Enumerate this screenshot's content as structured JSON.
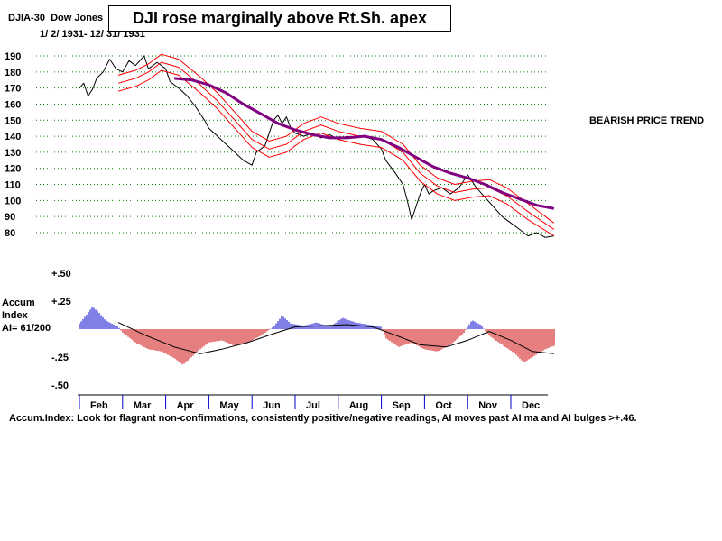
{
  "header": {
    "ticker": "DJIA-30",
    "index_name": "Dow Jones",
    "date_range": "1/ 2/ 1931- 12/ 31/ 1931",
    "headline": "DJI rose marginally above Rt.Sh. apex",
    "trend_label": "BEARISH PRICE TREND"
  },
  "accum": {
    "label_line1": "Accum",
    "label_line2": "Index",
    "label_line3": "AI= 61/200"
  },
  "footer": {
    "note": "Accum.Index: Look for flagrant non-confirmations, consistently positive/negative readings, AI moves past AI ma and AI bulges >+.46."
  },
  "chart_data": [
    {
      "type": "line",
      "title": "DJIA-30 1931",
      "ylabel": "",
      "ylim": [
        78,
        190
      ],
      "yticks": [
        80,
        90,
        100,
        110,
        120,
        130,
        140,
        150,
        160,
        170,
        180,
        190
      ],
      "months": [
        "Feb",
        "Mar",
        "Apr",
        "May",
        "Jun",
        "Jul",
        "Aug",
        "Sep",
        "Oct",
        "Nov",
        "Dec"
      ],
      "series": [
        {
          "name": "DJIA",
          "color": "#000000",
          "points": [
            [
              0.0,
              170
            ],
            [
              0.1,
              173
            ],
            [
              0.2,
              165
            ],
            [
              0.3,
              169
            ],
            [
              0.4,
              176
            ],
            [
              0.55,
              180
            ],
            [
              0.7,
              188
            ],
            [
              0.85,
              182
            ],
            [
              1.0,
              180
            ],
            [
              1.15,
              187
            ],
            [
              1.3,
              184
            ],
            [
              1.5,
              190
            ],
            [
              1.6,
              182
            ],
            [
              1.8,
              186
            ],
            [
              2.0,
              182
            ],
            [
              2.1,
              174
            ],
            [
              2.3,
              170
            ],
            [
              2.5,
              165
            ],
            [
              2.7,
              158
            ],
            [
              2.9,
              150
            ],
            [
              3.0,
              145
            ],
            [
              3.2,
              140
            ],
            [
              3.4,
              135
            ],
            [
              3.6,
              130
            ],
            [
              3.8,
              125
            ],
            [
              4.0,
              122
            ],
            [
              4.1,
              130
            ],
            [
              4.3,
              134
            ],
            [
              4.5,
              150
            ],
            [
              4.6,
              153
            ],
            [
              4.7,
              148
            ],
            [
              4.8,
              152
            ],
            [
              4.9,
              145
            ],
            [
              5.0,
              142
            ],
            [
              5.2,
              140
            ],
            [
              5.4,
              142
            ],
            [
              5.6,
              139
            ],
            [
              5.8,
              141
            ],
            [
              6.0,
              138
            ],
            [
              6.2,
              140
            ],
            [
              6.4,
              139
            ],
            [
              6.6,
              140
            ],
            [
              6.8,
              138
            ],
            [
              7.0,
              132
            ],
            [
              7.1,
              125
            ],
            [
              7.3,
              118
            ],
            [
              7.5,
              110
            ],
            [
              7.6,
              100
            ],
            [
              7.7,
              88
            ],
            [
              7.8,
              96
            ],
            [
              7.9,
              104
            ],
            [
              8.0,
              110
            ],
            [
              8.1,
              104
            ],
            [
              8.2,
              106
            ],
            [
              8.4,
              108
            ],
            [
              8.6,
              104
            ],
            [
              8.8,
              108
            ],
            [
              9.0,
              116
            ],
            [
              9.1,
              112
            ],
            [
              9.2,
              108
            ],
            [
              9.4,
              102
            ],
            [
              9.6,
              96
            ],
            [
              9.8,
              90
            ],
            [
              10.0,
              86
            ],
            [
              10.2,
              82
            ],
            [
              10.4,
              78
            ],
            [
              10.6,
              80
            ],
            [
              10.8,
              77
            ],
            [
              11.0,
              78
            ]
          ]
        },
        {
          "name": "MA upper band",
          "color": "#ff0000",
          "points": [
            [
              0.9,
              178
            ],
            [
              1.3,
              181
            ],
            [
              1.6,
              185
            ],
            [
              1.9,
              191
            ],
            [
              2.3,
              188
            ],
            [
              2.8,
              177
            ],
            [
              3.2,
              167
            ],
            [
              3.6,
              155
            ],
            [
              4.0,
              143
            ],
            [
              4.4,
              137
            ],
            [
              4.8,
              140
            ],
            [
              5.2,
              148
            ],
            [
              5.6,
              152
            ],
            [
              6.0,
              148
            ],
            [
              6.5,
              145
            ],
            [
              7.0,
              143
            ],
            [
              7.5,
              135
            ],
            [
              7.9,
              122
            ],
            [
              8.3,
              114
            ],
            [
              8.7,
              110
            ],
            [
              9.1,
              112
            ],
            [
              9.5,
              113
            ],
            [
              9.9,
              108
            ],
            [
              10.4,
              98
            ],
            [
              11.0,
              86
            ]
          ]
        },
        {
          "name": "MA",
          "color": "#ff0000",
          "points": [
            [
              0.9,
              173
            ],
            [
              1.3,
              176
            ],
            [
              1.6,
              180
            ],
            [
              1.9,
              186
            ],
            [
              2.3,
              183
            ],
            [
              2.8,
              172
            ],
            [
              3.2,
              162
            ],
            [
              3.6,
              150
            ],
            [
              4.0,
              138
            ],
            [
              4.4,
              132
            ],
            [
              4.8,
              135
            ],
            [
              5.2,
              143
            ],
            [
              5.6,
              147
            ],
            [
              6.0,
              143
            ],
            [
              6.5,
              140
            ],
            [
              7.0,
              138
            ],
            [
              7.5,
              130
            ],
            [
              7.9,
              117
            ],
            [
              8.3,
              109
            ],
            [
              8.7,
              105
            ],
            [
              9.1,
              107
            ],
            [
              9.5,
              108
            ],
            [
              9.9,
              103
            ],
            [
              10.4,
              93
            ],
            [
              11.0,
              82
            ]
          ]
        },
        {
          "name": "MA lower band",
          "color": "#ff0000",
          "points": [
            [
              0.9,
              168
            ],
            [
              1.3,
              171
            ],
            [
              1.6,
              175
            ],
            [
              1.9,
              181
            ],
            [
              2.3,
              178
            ],
            [
              2.8,
              167
            ],
            [
              3.2,
              157
            ],
            [
              3.6,
              145
            ],
            [
              4.0,
              133
            ],
            [
              4.4,
              127
            ],
            [
              4.8,
              130
            ],
            [
              5.2,
              138
            ],
            [
              5.6,
              142
            ],
            [
              6.0,
              138
            ],
            [
              6.5,
              135
            ],
            [
              7.0,
              133
            ],
            [
              7.5,
              125
            ],
            [
              7.9,
              112
            ],
            [
              8.3,
              104
            ],
            [
              8.7,
              100
            ],
            [
              9.1,
              102
            ],
            [
              9.5,
              103
            ],
            [
              9.9,
              98
            ],
            [
              10.4,
              88
            ],
            [
              11.0,
              78
            ]
          ]
        },
        {
          "name": "Long MA",
          "color": "#800080",
          "points": [
            [
              2.2,
              176
            ],
            [
              2.6,
              175
            ],
            [
              3.0,
              172
            ],
            [
              3.4,
              167
            ],
            [
              3.8,
              160
            ],
            [
              4.2,
              154
            ],
            [
              4.6,
              148
            ],
            [
              5.0,
              144
            ],
            [
              5.4,
              141
            ],
            [
              5.8,
              139
            ],
            [
              6.2,
              139
            ],
            [
              6.6,
              140
            ],
            [
              7.0,
              138
            ],
            [
              7.4,
              133
            ],
            [
              7.8,
              127
            ],
            [
              8.2,
              121
            ],
            [
              8.6,
              117
            ],
            [
              9.0,
              114
            ],
            [
              9.4,
              110
            ],
            [
              9.8,
              105
            ],
            [
              10.2,
              101
            ],
            [
              10.6,
              97
            ],
            [
              11.0,
              95
            ]
          ]
        }
      ]
    },
    {
      "type": "bar",
      "title": "Accumulation Index",
      "ylim": [
        -0.5,
        0.5
      ],
      "yticks": [
        0.5,
        0.25,
        -0.25,
        -0.5
      ],
      "ytick_labels": [
        "+.50",
        "+.25",
        "-.25",
        "-.50"
      ],
      "ai_points": [
        [
          0.0,
          0.05
        ],
        [
          0.15,
          0.12
        ],
        [
          0.3,
          0.2
        ],
        [
          0.45,
          0.15
        ],
        [
          0.6,
          0.08
        ],
        [
          0.75,
          0.05
        ],
        [
          0.9,
          0.02
        ],
        [
          1.0,
          -0.03
        ],
        [
          1.3,
          -0.12
        ],
        [
          1.6,
          -0.18
        ],
        [
          1.9,
          -0.2
        ],
        [
          2.2,
          -0.26
        ],
        [
          2.4,
          -0.32
        ],
        [
          2.6,
          -0.25
        ],
        [
          2.8,
          -0.18
        ],
        [
          3.0,
          -0.12
        ],
        [
          3.3,
          -0.1
        ],
        [
          3.6,
          -0.15
        ],
        [
          3.9,
          -0.12
        ],
        [
          4.2,
          -0.06
        ],
        [
          4.5,
          0.02
        ],
        [
          4.7,
          0.12
        ],
        [
          4.9,
          0.05
        ],
        [
          5.2,
          0.03
        ],
        [
          5.5,
          0.06
        ],
        [
          5.8,
          0.02
        ],
        [
          6.1,
          0.1
        ],
        [
          6.4,
          0.06
        ],
        [
          6.7,
          0.04
        ],
        [
          7.0,
          0.02
        ],
        [
          7.1,
          -0.08
        ],
        [
          7.4,
          -0.16
        ],
        [
          7.7,
          -0.12
        ],
        [
          8.0,
          -0.18
        ],
        [
          8.3,
          -0.2
        ],
        [
          8.6,
          -0.14
        ],
        [
          8.9,
          -0.04
        ],
        [
          9.1,
          0.08
        ],
        [
          9.3,
          0.04
        ],
        [
          9.5,
          -0.06
        ],
        [
          9.8,
          -0.14
        ],
        [
          10.1,
          -0.22
        ],
        [
          10.3,
          -0.3
        ],
        [
          10.5,
          -0.25
        ],
        [
          10.8,
          -0.18
        ],
        [
          11.0,
          -0.15
        ]
      ],
      "ai_ma_points": [
        [
          0.9,
          0.06
        ],
        [
          1.5,
          -0.05
        ],
        [
          2.2,
          -0.16
        ],
        [
          2.8,
          -0.22
        ],
        [
          3.3,
          -0.18
        ],
        [
          3.9,
          -0.12
        ],
        [
          4.5,
          -0.04
        ],
        [
          5.0,
          0.02
        ],
        [
          5.6,
          0.03
        ],
        [
          6.2,
          0.04
        ],
        [
          6.8,
          0.02
        ],
        [
          7.3,
          -0.05
        ],
        [
          7.9,
          -0.14
        ],
        [
          8.5,
          -0.16
        ],
        [
          9.0,
          -0.1
        ],
        [
          9.5,
          -0.02
        ],
        [
          10.0,
          -0.1
        ],
        [
          10.5,
          -0.2
        ],
        [
          11.0,
          -0.22
        ]
      ]
    }
  ],
  "colors": {
    "price": "#000000",
    "bands": "#ff0000",
    "long_ma": "#800080",
    "ai_positive": "#0000cc",
    "ai_negative": "#cc0000",
    "grid": "#008000",
    "month_marks": "#0000cc"
  }
}
